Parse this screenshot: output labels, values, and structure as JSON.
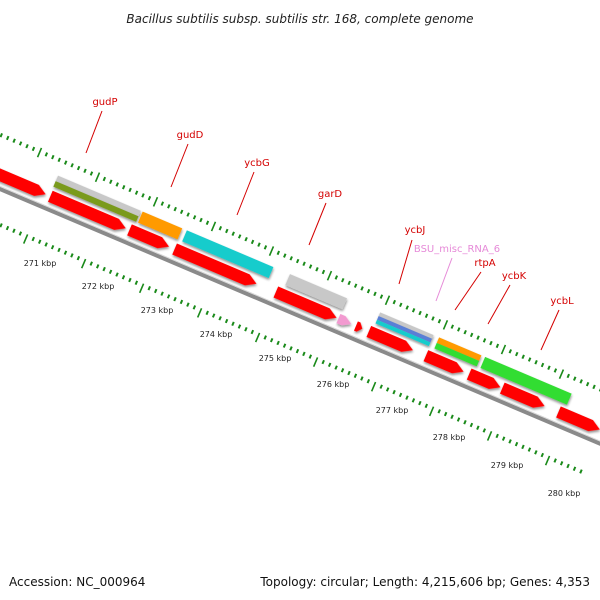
{
  "header": {
    "title": "Bacillus subtilis subsp. subtilis str. 168, complete genome"
  },
  "footer": {
    "accession": "Accession: NC_000964",
    "summary": "Topology: circular; Length: 4,215,606 bp; Genes: 4,353"
  },
  "colors": {
    "cds_red": "#ff0000",
    "gray": "#c8c8c8",
    "olive": "#7a9a1e",
    "orange": "#ff9a00",
    "cyan": "#18cccc",
    "green": "#33dd33",
    "pink": "#f29ad0",
    "blue": "#5a7fd6",
    "backbone": "#8a8a8a",
    "tick_green": "#1a8a1a",
    "label_red": "#d40000",
    "label_pink": "#e68ad8"
  },
  "gene_labels": [
    {
      "text": "gudP",
      "color": "label_red"
    },
    {
      "text": "gudD",
      "color": "label_red"
    },
    {
      "text": "ycbG",
      "color": "label_red"
    },
    {
      "text": "garD",
      "color": "label_red"
    },
    {
      "text": "ycbJ",
      "color": "label_red"
    },
    {
      "text": "BSU_misc_RNA_6",
      "color": "label_pink"
    },
    {
      "text": "rtpA",
      "color": "label_red"
    },
    {
      "text": "ycbK",
      "color": "label_red"
    },
    {
      "text": "ycbL",
      "color": "label_red"
    }
  ],
  "kbp_labels": [
    "271 kbp",
    "272 kbp",
    "273 kbp",
    "274 kbp",
    "275 kbp",
    "276 kbp",
    "277 kbp",
    "278 kbp",
    "279 kbp",
    "280 kbp"
  ]
}
